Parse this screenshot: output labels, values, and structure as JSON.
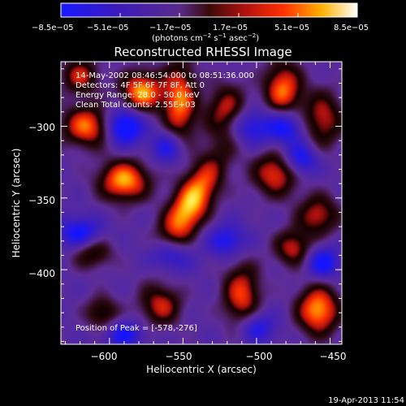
{
  "chart_data": {
    "type": "heatmap",
    "title": "Reconstructed RHESSI Image",
    "xlabel": "Heliocentric X (arcsec)",
    "ylabel": "Heliocentric Y (arcsec)",
    "xlim": [
      -633,
      -442
    ],
    "ylim": [
      -452,
      -255
    ],
    "x_ticks": [
      -600,
      -550,
      -500,
      -450
    ],
    "x_tick_labels": [
      "−600",
      "−550",
      "−500",
      "−450"
    ],
    "y_ticks": [
      -300,
      -350,
      -400
    ],
    "y_tick_labels": [
      "−300",
      "−350",
      "−400"
    ],
    "colorbar": {
      "min": -8.5e-05,
      "max": 8.5e-05,
      "tick_labels": [
        "−8.5e−05",
        "−5.1e−05",
        "−1.7e−05",
        "1.7e−05",
        "5.1e−05",
        "8.5e−05"
      ],
      "unit_main": "(photons cm",
      "unit_sup1": "−2",
      "unit_mid": " s",
      "unit_sup2": "−1",
      "unit_mid2": " asec",
      "unit_sup3": "−2",
      "unit_end": ")",
      "colormap": "blue-purple-red-yellow-white"
    },
    "peak": {
      "x": -578,
      "y": -276
    },
    "sources": [
      {
        "x": -545,
        "y": -355,
        "amp": 1.0,
        "sx": 9,
        "sy": 26,
        "rot": 0.5
      },
      {
        "x": -590,
        "y": -338,
        "amp": 0.9,
        "sx": 12,
        "sy": 10,
        "rot": 0
      },
      {
        "x": -615,
        "y": -300,
        "amp": 0.8,
        "sx": 12,
        "sy": 10,
        "rot": 0
      },
      {
        "x": -578,
        "y": -276,
        "amp": 0.9,
        "sx": 10,
        "sy": 10,
        "rot": 0
      },
      {
        "x": -552,
        "y": -283,
        "amp": 0.8,
        "sx": 8,
        "sy": 20,
        "rot": 0
      },
      {
        "x": -520,
        "y": -292,
        "amp": 0.7,
        "sx": 10,
        "sy": 14,
        "rot": 0
      },
      {
        "x": -482,
        "y": -275,
        "amp": 0.8,
        "sx": 9,
        "sy": 14,
        "rot": 0
      },
      {
        "x": -455,
        "y": -295,
        "amp": 0.6,
        "sx": 10,
        "sy": 14,
        "rot": 0
      },
      {
        "x": -487,
        "y": -333,
        "amp": 0.7,
        "sx": 11,
        "sy": 11,
        "rot": 0
      },
      {
        "x": -458,
        "y": -362,
        "amp": 0.6,
        "sx": 10,
        "sy": 10,
        "rot": 0
      },
      {
        "x": -612,
        "y": -388,
        "amp": 0.5,
        "sx": 10,
        "sy": 8,
        "rot": 0
      },
      {
        "x": -565,
        "y": -425,
        "amp": 0.6,
        "sx": 10,
        "sy": 10,
        "rot": 0
      },
      {
        "x": -510,
        "y": -418,
        "amp": 0.7,
        "sx": 9,
        "sy": 16,
        "rot": 0
      },
      {
        "x": -458,
        "y": -428,
        "amp": 0.9,
        "sx": 10,
        "sy": 12,
        "rot": 0
      },
      {
        "x": -475,
        "y": -385,
        "amp": 0.6,
        "sx": 9,
        "sy": 9,
        "rot": 0
      },
      {
        "x": -605,
        "y": -430,
        "amp": 0.5,
        "sx": 8,
        "sy": 8,
        "rot": 0
      },
      {
        "x": -620,
        "y": -265,
        "amp": 0.6,
        "sx": 9,
        "sy": 9,
        "rot": 0
      },
      {
        "x": -590,
        "y": -300,
        "amp": -0.8,
        "sx": 9,
        "sy": 9,
        "rot": 0
      },
      {
        "x": -507,
        "y": -300,
        "amp": -0.6,
        "sx": 12,
        "sy": 9,
        "rot": 0
      },
      {
        "x": -480,
        "y": -300,
        "amp": -0.6,
        "sx": 9,
        "sy": 9,
        "rot": 0
      },
      {
        "x": -470,
        "y": -323,
        "amp": -0.6,
        "sx": 8,
        "sy": 8,
        "rot": 0
      },
      {
        "x": -560,
        "y": -315,
        "amp": -0.5,
        "sx": 8,
        "sy": 8,
        "rot": 0
      },
      {
        "x": -620,
        "y": -375,
        "amp": -0.6,
        "sx": 10,
        "sy": 8,
        "rot": 0
      },
      {
        "x": -560,
        "y": -390,
        "amp": -0.6,
        "sx": 10,
        "sy": 8,
        "rot": 0
      },
      {
        "x": -520,
        "y": -380,
        "amp": -0.5,
        "sx": 9,
        "sy": 8,
        "rot": 0
      },
      {
        "x": -455,
        "y": -395,
        "amp": -0.6,
        "sx": 8,
        "sy": 8,
        "rot": 0
      },
      {
        "x": -500,
        "y": -440,
        "amp": -0.5,
        "sx": 9,
        "sy": 8,
        "rot": 0
      },
      {
        "x": -590,
        "y": -445,
        "amp": -0.5,
        "sx": 9,
        "sy": 7,
        "rot": 0
      }
    ]
  },
  "annotations": {
    "time_range": "14-May-2002 08:46:54.000 to 08:51:36.000",
    "detectors": "Detectors: 4F 5F 6F 7F 8F, Att 0",
    "energy": "Energy Range: 28.0 - 50.0 keV",
    "clean": "Clean    Total counts: 2.55E+03",
    "peak": "Position of Peak = [-578,-276]",
    "timestamp": "19-Apr-2013 11:54"
  }
}
